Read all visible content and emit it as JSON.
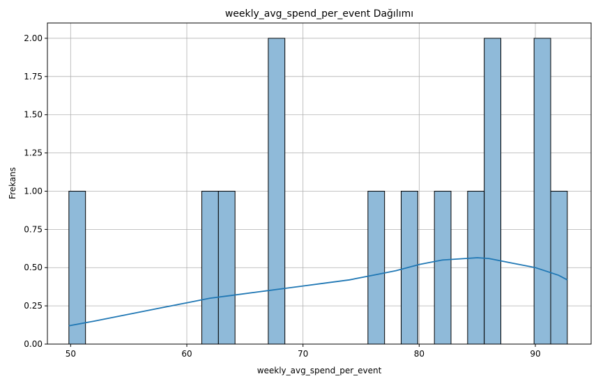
{
  "chart_data": {
    "type": "bar",
    "title": "weekly_avg_spend_per_event Dağılımı",
    "xlabel": "weekly_avg_spend_per_event",
    "ylabel": "Frekans",
    "xlim": [
      48.0,
      94.8
    ],
    "ylim": [
      0.0,
      2.1
    ],
    "grid": true,
    "bin_start": 49.85,
    "bin_width": 1.43,
    "bin_counts": [
      1,
      0,
      0,
      0,
      0,
      0,
      0,
      0,
      1,
      1,
      0,
      0,
      2,
      0,
      0,
      0,
      0,
      0,
      1,
      0,
      1,
      0,
      1,
      0,
      1,
      2,
      0,
      0,
      2,
      1
    ],
    "x_ticks": [
      "50",
      "60",
      "70",
      "80",
      "90"
    ],
    "x_tick_values": [
      50,
      60,
      70,
      80,
      90
    ],
    "y_ticks": [
      "0.00",
      "0.25",
      "0.50",
      "0.75",
      "1.00",
      "1.25",
      "1.50",
      "1.75",
      "2.00"
    ],
    "y_tick_values": [
      0,
      0.25,
      0.5,
      0.75,
      1.0,
      1.25,
      1.5,
      1.75,
      2.0
    ],
    "kde": {
      "x": [
        49.85,
        52,
        54,
        56,
        58,
        60,
        62,
        64,
        66,
        68,
        70,
        72,
        74,
        76,
        78,
        80,
        82,
        84,
        85,
        86,
        88,
        90,
        92,
        92.75
      ],
      "y": [
        0.12,
        0.15,
        0.18,
        0.21,
        0.24,
        0.27,
        0.3,
        0.32,
        0.34,
        0.36,
        0.38,
        0.4,
        0.42,
        0.45,
        0.48,
        0.52,
        0.55,
        0.56,
        0.565,
        0.56,
        0.53,
        0.5,
        0.45,
        0.42
      ]
    },
    "colors": {
      "bar_fill": "#8fbad9",
      "bar_edge": "#000000",
      "kde_line": "#1f77b4",
      "grid": "#b0b0b0"
    }
  }
}
